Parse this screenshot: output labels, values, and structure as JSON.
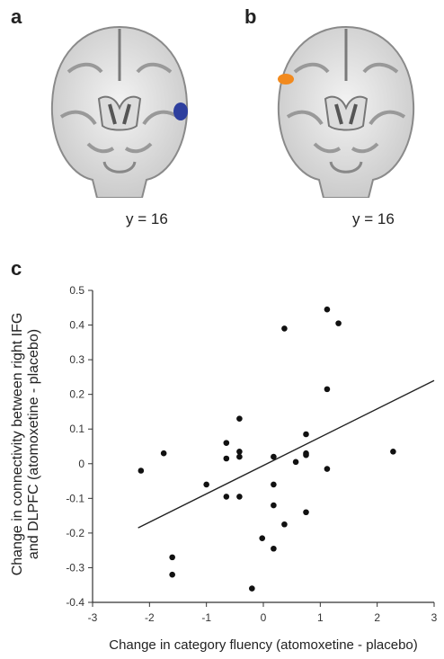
{
  "panels": {
    "a": {
      "letter": "a",
      "slice_label": "y = 16",
      "blob_color": "#2e3f9e"
    },
    "b": {
      "letter": "b",
      "slice_label": "y = 16",
      "blob_color": "#f28a1e"
    },
    "c": {
      "letter": "c"
    }
  },
  "chart_data": {
    "type": "scatter",
    "xlabel": "Change in category fluency (atomoxetine - placebo)",
    "ylabel_lines": [
      "Change in connectivity between right IFG",
      "and DLPFC (atomoxetine - placebo)"
    ],
    "xlim": [
      -3,
      3
    ],
    "ylim": [
      -0.4,
      0.5
    ],
    "xticks": [
      -3,
      -2,
      -1,
      0,
      1,
      2,
      3
    ],
    "yticks": [
      0.5,
      0.4,
      0.3,
      0.2,
      0.1,
      0,
      -0.1,
      -0.2,
      -0.3,
      -0.4
    ],
    "grid": false,
    "points": [
      {
        "x": -2.15,
        "y": -0.02
      },
      {
        "x": -1.75,
        "y": 0.03
      },
      {
        "x": -1.6,
        "y": -0.27
      },
      {
        "x": -1.6,
        "y": -0.32
      },
      {
        "x": -1.0,
        "y": -0.06
      },
      {
        "x": -0.65,
        "y": 0.06
      },
      {
        "x": -0.65,
        "y": 0.015
      },
      {
        "x": -0.65,
        "y": -0.095
      },
      {
        "x": -0.42,
        "y": 0.13
      },
      {
        "x": -0.42,
        "y": 0.035
      },
      {
        "x": -0.42,
        "y": 0.02
      },
      {
        "x": -0.42,
        "y": -0.095
      },
      {
        "x": -0.2,
        "y": -0.36
      },
      {
        "x": -0.02,
        "y": -0.215
      },
      {
        "x": 0.18,
        "y": 0.02
      },
      {
        "x": 0.18,
        "y": -0.06
      },
      {
        "x": 0.18,
        "y": -0.12
      },
      {
        "x": 0.18,
        "y": -0.245
      },
      {
        "x": 0.37,
        "y": -0.175
      },
      {
        "x": 0.37,
        "y": 0.39
      },
      {
        "x": 0.57,
        "y": 0.005
      },
      {
        "x": 0.75,
        "y": 0.085
      },
      {
        "x": 0.75,
        "y": 0.03
      },
      {
        "x": 0.75,
        "y": 0.025
      },
      {
        "x": 0.75,
        "y": -0.14
      },
      {
        "x": 1.12,
        "y": 0.445
      },
      {
        "x": 1.12,
        "y": 0.215
      },
      {
        "x": 1.12,
        "y": -0.015
      },
      {
        "x": 1.32,
        "y": 0.405
      },
      {
        "x": 2.28,
        "y": 0.035
      }
    ],
    "fit_line": {
      "x": [
        -2.2,
        3.0
      ],
      "y": [
        -0.185,
        0.24
      ]
    }
  }
}
